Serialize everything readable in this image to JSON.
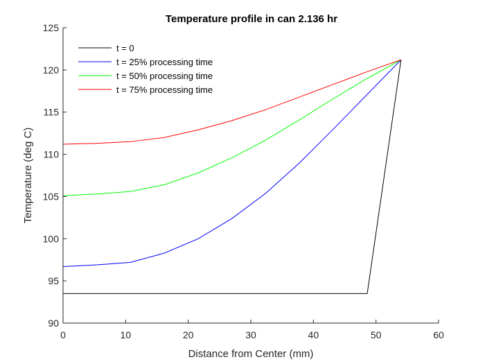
{
  "chart_data": {
    "type": "line",
    "title": "Temperature profile in can 2.136 hr",
    "xlabel": "Distance from Center (mm)",
    "ylabel": "Temperature (deg C)",
    "xlim": [
      0,
      60
    ],
    "ylim": [
      90,
      125
    ],
    "xticks": [
      0,
      10,
      20,
      30,
      40,
      50,
      60
    ],
    "yticks": [
      90,
      95,
      100,
      105,
      110,
      115,
      120,
      125
    ],
    "grid": false,
    "legend_position": "top-left",
    "series": [
      {
        "name": "t = 0",
        "color": "#000000",
        "x": [
          0,
          5.4,
          10.8,
          16.2,
          21.6,
          27.0,
          32.4,
          37.8,
          43.2,
          48.6,
          54.0
        ],
        "y": [
          93.5,
          93.5,
          93.5,
          93.5,
          93.5,
          93.5,
          93.5,
          93.5,
          93.5,
          93.5,
          121.2
        ]
      },
      {
        "name": "t = 25% processing time",
        "color": "#0000ff",
        "x": [
          0,
          5.4,
          10.8,
          16.2,
          21.6,
          27.0,
          32.4,
          37.8,
          43.2,
          48.6,
          54.0
        ],
        "y": [
          96.7,
          96.9,
          97.2,
          98.3,
          100.0,
          102.4,
          105.4,
          109.0,
          113.0,
          117.1,
          121.2
        ]
      },
      {
        "name": "t = 50% processing time",
        "color": "#00ff00",
        "x": [
          0,
          5.4,
          10.8,
          16.2,
          21.6,
          27.0,
          32.4,
          37.8,
          43.2,
          48.6,
          54.0
        ],
        "y": [
          105.1,
          105.3,
          105.6,
          106.4,
          107.8,
          109.6,
          111.7,
          114.1,
          116.6,
          119.0,
          121.2
        ]
      },
      {
        "name": "t = 75% processing time",
        "color": "#ff0000",
        "x": [
          0,
          5.4,
          10.8,
          16.2,
          21.6,
          27.0,
          32.4,
          37.8,
          43.2,
          48.6,
          54.0
        ],
        "y": [
          111.2,
          111.3,
          111.5,
          112.0,
          112.9,
          114.0,
          115.3,
          116.8,
          118.3,
          119.8,
          121.2
        ]
      }
    ]
  }
}
